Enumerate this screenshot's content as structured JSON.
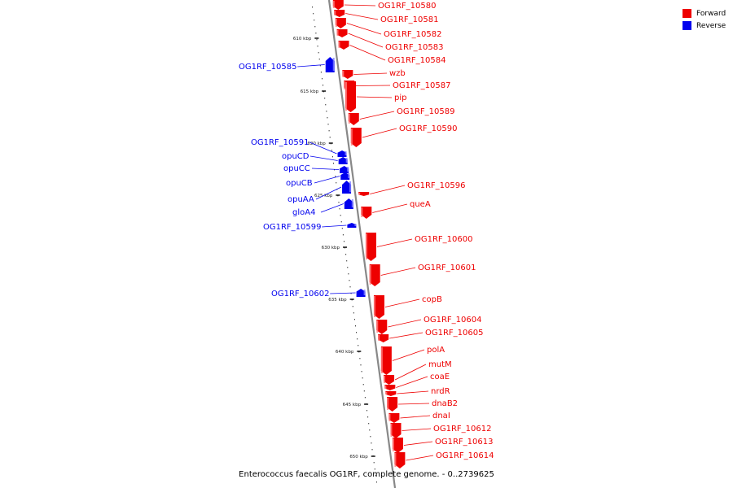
{
  "colors": {
    "forward": "#ee0000",
    "reverse": "#0000ee",
    "axis": "#888888"
  },
  "legend": [
    {
      "label": "Forward",
      "color": "#ee0000"
    },
    {
      "label": "Reverse",
      "color": "#0000ee"
    }
  ],
  "caption": "Enterococcus faecalis OG1RF, complete genome. - 0..2739625",
  "ticks": [
    "610 kbp",
    "615 kbp",
    "620 kbp",
    "625 kbp",
    "630 kbp",
    "635 kbp",
    "640 kbp",
    "645 kbp",
    "650 kbp"
  ],
  "genes": [
    {
      "name": "OG1RF_10580",
      "strand": "forward"
    },
    {
      "name": "OG1RF_10581",
      "strand": "forward"
    },
    {
      "name": "OG1RF_10582",
      "strand": "forward"
    },
    {
      "name": "OG1RF_10583",
      "strand": "forward"
    },
    {
      "name": "OG1RF_10584",
      "strand": "forward"
    },
    {
      "name": "OG1RF_10585",
      "strand": "reverse"
    },
    {
      "name": "wzb",
      "strand": "forward"
    },
    {
      "name": "OG1RF_10587",
      "strand": "forward"
    },
    {
      "name": "pip",
      "strand": "forward"
    },
    {
      "name": "OG1RF_10589",
      "strand": "forward"
    },
    {
      "name": "OG1RF_10590",
      "strand": "forward"
    },
    {
      "name": "OG1RF_10591",
      "strand": "reverse"
    },
    {
      "name": "opuCD",
      "strand": "reverse"
    },
    {
      "name": "opuCC",
      "strand": "reverse"
    },
    {
      "name": "opuCB",
      "strand": "reverse"
    },
    {
      "name": "opuAA",
      "strand": "reverse"
    },
    {
      "name": "gloA4",
      "strand": "reverse"
    },
    {
      "name": "OG1RF_10596",
      "strand": "forward"
    },
    {
      "name": "queA",
      "strand": "forward"
    },
    {
      "name": "OG1RF_10599",
      "strand": "reverse"
    },
    {
      "name": "OG1RF_10600",
      "strand": "forward"
    },
    {
      "name": "OG1RF_10601",
      "strand": "forward"
    },
    {
      "name": "OG1RF_10602",
      "strand": "reverse"
    },
    {
      "name": "copB",
      "strand": "forward"
    },
    {
      "name": "OG1RF_10604",
      "strand": "forward"
    },
    {
      "name": "OG1RF_10605",
      "strand": "forward"
    },
    {
      "name": "polA",
      "strand": "forward"
    },
    {
      "name": "mutM",
      "strand": "forward"
    },
    {
      "name": "coaE",
      "strand": "forward"
    },
    {
      "name": "nrdR",
      "strand": "forward"
    },
    {
      "name": "dnaB2",
      "strand": "forward"
    },
    {
      "name": "dnaI",
      "strand": "forward"
    },
    {
      "name": "OG1RF_10612",
      "strand": "forward"
    },
    {
      "name": "OG1RF_10613",
      "strand": "forward"
    },
    {
      "name": "OG1RF_10614",
      "strand": "forward"
    }
  ]
}
